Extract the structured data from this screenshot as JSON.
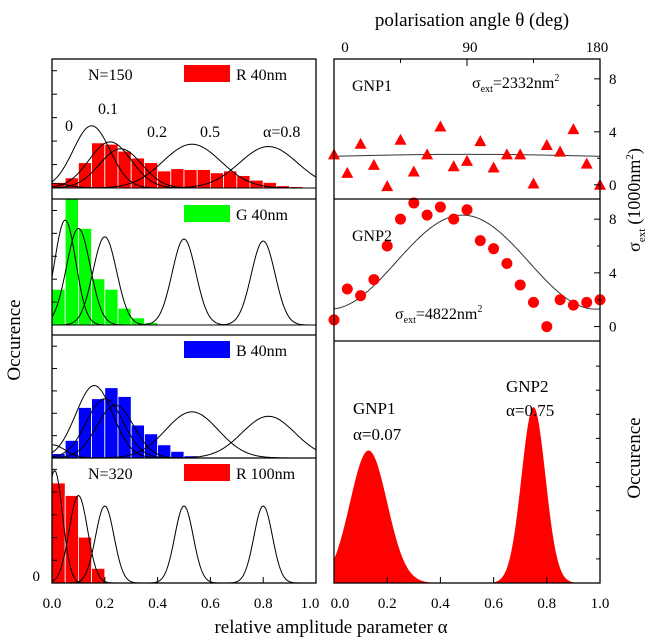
{
  "figure": {
    "xlabel": "relative amplitude parameter α",
    "left_ylabel": "Occurence",
    "right_ylabel": "Occurence",
    "top_xlabel": "polarisation angle θ (deg)",
    "sigma_ylabel": "σ",
    "sigma_ylabel_sub": "ext",
    "sigma_ylabel_unit": "(1000nm",
    "sigma_ylabel_sup": "2",
    "sigma_ylabel_close": ")",
    "left_xticks": [
      "0.0",
      "0.2",
      "0.4",
      "0.6",
      "0.8",
      "1.0"
    ],
    "right_xticks": [
      "0.0",
      "0.2",
      "0.4",
      "0.6",
      "0.8",
      "1.0"
    ],
    "top_xticks": [
      "0",
      "90",
      "180"
    ],
    "left_zero_label": "0",
    "alpha_labels": [
      {
        "text": "0",
        "alpha": 0.0
      },
      {
        "text": "0.1",
        "alpha": 0.1
      },
      {
        "text": "0.2",
        "alpha": 0.2
      },
      {
        "text": "0.5",
        "alpha": 0.5
      },
      {
        "text": "α=0.8",
        "alpha": 0.8
      }
    ]
  },
  "legends": {
    "r40": {
      "label": "R 40nm",
      "n": "N=150",
      "color": "#ff0000"
    },
    "g40": {
      "label": "G 40nm",
      "color": "#00ff00"
    },
    "b40": {
      "label": "B 40nm",
      "color": "#0000ff"
    },
    "r100": {
      "label": "R 100nm",
      "n": "N=320",
      "color": "#ff0000"
    }
  },
  "gnp_text": {
    "gnp1_label": "GNP1",
    "gnp1_sigma_pre": "σ",
    "gnp1_sigma_sub": "ext",
    "gnp1_sigma_val": "=2332nm",
    "gnp1_sigma_sup": "2",
    "gnp2_label": "GNP2",
    "gnp2_sigma_pre": "σ",
    "gnp2_sigma_sub": "ext",
    "gnp2_sigma_val": "=4822nm",
    "gnp2_sigma_sup": "2",
    "dist_gnp1": "GNP1",
    "dist_gnp1_alpha": "α=0.07",
    "dist_gnp2": "GNP2",
    "dist_gnp2_alpha": "α=0.75",
    "sigma_yticks": [
      "0",
      "4",
      "8"
    ]
  },
  "chart_data": [
    {
      "type": "bar",
      "panel": "R 40nm",
      "bin_width": 0.05,
      "bin_starts": [
        0.0,
        0.05,
        0.1,
        0.15,
        0.2,
        0.25,
        0.3,
        0.35,
        0.4,
        0.45,
        0.5,
        0.55,
        0.6,
        0.65,
        0.7,
        0.75,
        0.8,
        0.85,
        0.9
      ],
      "values": [
        1.2,
        2.2,
        5.5,
        9.8,
        9.5,
        8.0,
        6.5,
        5.5,
        3.7,
        4.2,
        4.0,
        4.0,
        3.3,
        3.7,
        2.7,
        1.7,
        1.2,
        0.5,
        0.3
      ],
      "ylim": [
        0,
        28
      ],
      "curves": [
        {
          "center": 0.0,
          "width": 0.06,
          "amp": 1.0
        },
        {
          "center": 0.15,
          "width": 0.07,
          "amp": 13.5
        },
        {
          "center": 0.22,
          "width": 0.08,
          "amp": 10.0
        },
        {
          "center": 0.26,
          "width": 0.08,
          "amp": 8.5
        },
        {
          "center": 0.53,
          "width": 0.11,
          "amp": 9.5
        },
        {
          "center": 0.82,
          "width": 0.11,
          "amp": 9.0
        }
      ]
    },
    {
      "type": "bar",
      "panel": "G 40nm",
      "bin_width": 0.05,
      "bin_starts": [
        0.0,
        0.05,
        0.1,
        0.15,
        0.2,
        0.25,
        0.3,
        0.35
      ],
      "values": [
        8.5,
        30.0,
        23.0,
        11.0,
        8.5,
        4.0,
        1.7,
        0.6
      ],
      "ylim": [
        0,
        30
      ],
      "curves": [
        {
          "center": 0.05,
          "width": 0.04,
          "amp": 25.0
        },
        {
          "center": 0.1,
          "width": 0.045,
          "amp": 23.0
        },
        {
          "center": 0.2,
          "width": 0.045,
          "amp": 21.0
        },
        {
          "center": 0.5,
          "width": 0.045,
          "amp": 20.5
        },
        {
          "center": 0.8,
          "width": 0.045,
          "amp": 20.0
        }
      ]
    },
    {
      "type": "bar",
      "panel": "B 40nm",
      "bin_width": 0.05,
      "bin_starts": [
        0.0,
        0.05,
        0.1,
        0.15,
        0.2,
        0.25,
        0.3,
        0.35,
        0.4,
        0.45,
        0.5
      ],
      "values": [
        1.0,
        4.0,
        11.5,
        13.5,
        16.0,
        14.0,
        7.5,
        5.5,
        3.0,
        1.5,
        0.5
      ],
      "ylim": [
        0,
        28
      ],
      "curves": [
        {
          "center": 0.0,
          "width": 0.05,
          "amp": 3.0
        },
        {
          "center": 0.16,
          "width": 0.07,
          "amp": 16.5
        },
        {
          "center": 0.2,
          "width": 0.07,
          "amp": 13.5
        },
        {
          "center": 0.24,
          "width": 0.07,
          "amp": 12.0
        },
        {
          "center": 0.53,
          "width": 0.1,
          "amp": 10.5
        },
        {
          "center": 0.82,
          "width": 0.1,
          "amp": 9.5
        }
      ]
    },
    {
      "type": "bar",
      "panel": "R 100nm",
      "bin_width": 0.05,
      "bin_starts": [
        0.0,
        0.05,
        0.1,
        0.15
      ],
      "values": [
        24.0,
        21.0,
        11.0,
        3.5
      ],
      "ylim": [
        0,
        30
      ],
      "curves": [
        {
          "center": 0.01,
          "width": 0.03,
          "amp": 27.0
        },
        {
          "center": 0.1,
          "width": 0.035,
          "amp": 21.0
        },
        {
          "center": 0.2,
          "width": 0.035,
          "amp": 18.5
        },
        {
          "center": 0.5,
          "width": 0.035,
          "amp": 18.5
        },
        {
          "center": 0.8,
          "width": 0.035,
          "amp": 18.5
        }
      ]
    },
    {
      "type": "scatter",
      "panel": "GNP1",
      "marker": "triangle",
      "x": [
        0,
        9,
        18,
        27,
        36,
        45,
        54,
        63,
        72,
        81,
        90,
        99,
        108,
        117,
        126,
        135,
        144,
        153,
        162,
        171,
        180
      ],
      "y": [
        2.3,
        0.9,
        3.1,
        1.5,
        -0.1,
        3.4,
        1.0,
        2.3,
        4.4,
        1.4,
        1.8,
        3.3,
        1.3,
        2.3,
        2.3,
        0.1,
        3.0,
        2.5,
        4.2,
        1.6,
        0.0
      ],
      "xlim": [
        0,
        180
      ],
      "ylim": [
        -1,
        9.5
      ],
      "fit": {
        "type": "cosine",
        "mean": 2.15,
        "amplitude": 0.15,
        "phase_deg": 90
      }
    },
    {
      "type": "scatter",
      "panel": "GNP2",
      "marker": "circle",
      "x": [
        0,
        9,
        18,
        27,
        36,
        45,
        54,
        63,
        72,
        81,
        90,
        99,
        108,
        117,
        126,
        135,
        144,
        153,
        162,
        171,
        180
      ],
      "y": [
        0.5,
        2.8,
        2.3,
        3.5,
        6.0,
        8.0,
        9.2,
        8.3,
        8.9,
        8.0,
        8.7,
        6.4,
        5.8,
        4.7,
        3.1,
        1.8,
        0.0,
        2.0,
        1.6,
        1.8,
        2.0
      ],
      "xlim": [
        0,
        180
      ],
      "ylim": [
        -1,
        9.5
      ],
      "fit": {
        "type": "cosine",
        "mean": 4.8,
        "amplitude": 3.5,
        "peak_deg": 87
      }
    },
    {
      "type": "area",
      "panel": "GNP distributions",
      "series": [
        {
          "name": "GNP1",
          "center": 0.13,
          "width": 0.07,
          "peak": 0.55
        },
        {
          "name": "GNP2",
          "center": 0.75,
          "width": 0.045,
          "peak": 0.73
        }
      ],
      "xlim": [
        0,
        1
      ]
    }
  ]
}
